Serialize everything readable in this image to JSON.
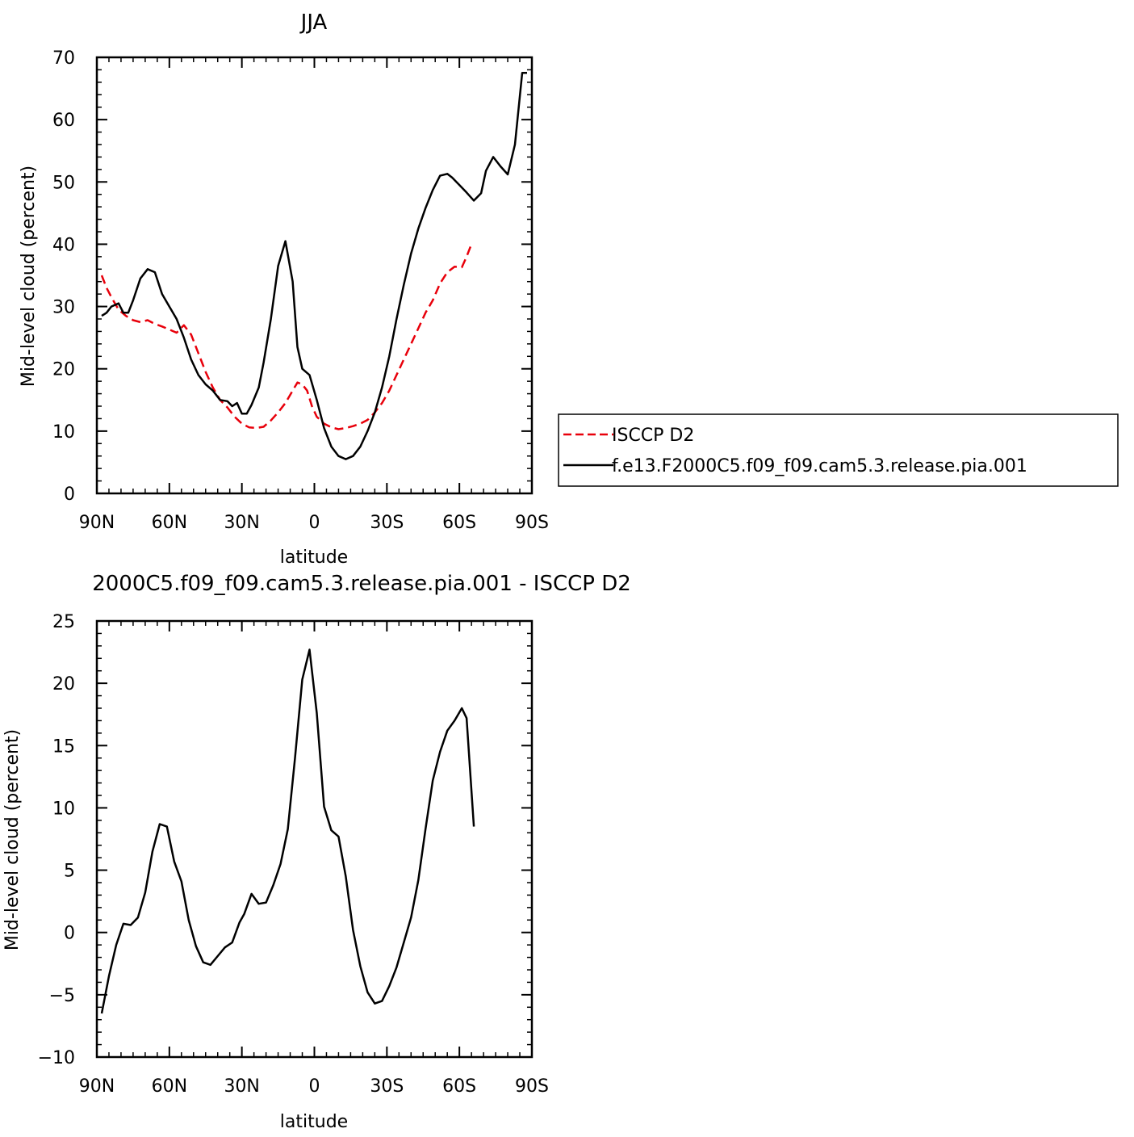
{
  "colors": {
    "model": "#000000",
    "obs": "#e8000b"
  },
  "chart_data": [
    {
      "type": "line",
      "title": "JJA",
      "xlabel": "latitude",
      "ylabel": "Mid-level cloud (percent)",
      "xlim": [
        90,
        -90
      ],
      "ylim": [
        0,
        70
      ],
      "xticks": [
        90,
        60,
        30,
        0,
        -30,
        -60,
        -90
      ],
      "xtick_labels": [
        "90N",
        "60N",
        "30N",
        "0",
        "30S",
        "60S",
        "90S"
      ],
      "yticks": [
        0,
        10,
        20,
        30,
        40,
        50,
        60,
        70
      ],
      "ytick_labels": [
        "0",
        "10",
        "20",
        "30",
        "40",
        "50",
        "60",
        "70"
      ],
      "legend_position": "right",
      "series": [
        {
          "name": "ISCCP D2",
          "style": "dashed",
          "color": "#e8000b",
          "x": [
            88,
            86,
            84,
            81,
            78,
            75,
            72,
            69,
            66,
            63,
            60,
            57,
            54,
            51,
            48,
            45,
            42,
            39,
            36,
            33,
            30,
            27,
            24,
            21,
            18,
            15,
            12,
            9,
            7,
            5,
            3,
            1,
            -1,
            -4,
            -7,
            -10,
            -13,
            -16,
            -19,
            -22,
            -25,
            -28,
            -31,
            -34,
            -37,
            -40,
            -43,
            -46,
            -49,
            -52,
            -55,
            -58,
            -61,
            -63,
            -65
          ],
          "y": [
            35,
            33,
            31.5,
            29.5,
            28.5,
            27.8,
            27.5,
            27.8,
            27.2,
            26.8,
            26.3,
            25.8,
            27,
            25.5,
            22.5,
            19.5,
            17,
            15,
            13.8,
            12.3,
            11.2,
            10.6,
            10.5,
            10.7,
            11.7,
            13,
            14.5,
            16.5,
            17.8,
            17.5,
            16.5,
            14,
            12.3,
            11.2,
            10.6,
            10.3,
            10.5,
            10.8,
            11.2,
            11.8,
            13,
            14.5,
            16.5,
            19,
            21.5,
            24,
            26.5,
            29,
            31,
            33.7,
            35.5,
            36.4,
            36.3,
            38,
            40
          ]
        },
        {
          "name": "f.e13.F2000C5.f09_f09.cam5.3.release.pia.001",
          "style": "solid",
          "color": "#000000",
          "x": [
            88,
            86,
            84,
            81,
            79,
            77,
            75,
            72,
            69,
            66,
            63,
            60,
            57,
            54,
            51,
            48,
            45,
            42,
            39,
            36,
            34,
            32,
            30,
            28,
            26,
            23,
            21,
            18,
            15,
            12,
            9,
            7,
            5,
            2,
            -1,
            -4,
            -7,
            -10,
            -13,
            -16,
            -19,
            -22,
            -25,
            -28,
            -31,
            -34,
            -37,
            -40,
            -43,
            -46,
            -49,
            -52,
            -55,
            -57,
            -60,
            -63,
            -66,
            -69,
            -71,
            -74,
            -77,
            -80,
            -83,
            -86,
            -88
          ],
          "y": [
            28.5,
            29,
            30,
            30.5,
            29,
            29,
            31,
            34.5,
            36,
            35.5,
            32,
            30,
            28,
            25,
            21.5,
            19,
            17.5,
            16.5,
            15,
            14.8,
            14,
            14.5,
            12.8,
            12.8,
            14.2,
            17,
            21,
            28,
            36.5,
            40.5,
            34,
            23.5,
            20,
            19,
            15,
            10.5,
            7.5,
            6,
            5.5,
            6,
            7.5,
            10,
            13,
            17,
            22,
            28,
            33.5,
            38.5,
            42.5,
            45.8,
            48.7,
            51,
            51.3,
            50.7,
            49.5,
            48.3,
            47,
            48.2,
            51.8,
            54,
            52.5,
            51.2,
            56,
            67.5,
            67.5
          ]
        }
      ],
      "legend": {
        "entries": [
          "ISCCP D2",
          "f.e13.F2000C5.f09_f09.cam5.3.release.pia.001"
        ]
      }
    },
    {
      "type": "line",
      "title": "2000C5.f09_f09.cam5.3.release.pia.001 - ISCCP D2",
      "xlabel": "latitude",
      "ylabel": "Mid-level cloud (percent)",
      "xlim": [
        90,
        -90
      ],
      "ylim": [
        -10,
        25
      ],
      "xticks": [
        90,
        60,
        30,
        0,
        -30,
        -60,
        -90
      ],
      "xtick_labels": [
        "90N",
        "60N",
        "30N",
        "0",
        "30S",
        "60S",
        "90S"
      ],
      "yticks": [
        -10,
        -5,
        0,
        5,
        10,
        15,
        20,
        25
      ],
      "ytick_labels": [
        "−10",
        "−5",
        "0",
        "5",
        "10",
        "15",
        "20",
        "25"
      ],
      "series": [
        {
          "style": "solid",
          "color": "#000000",
          "x": [
            88,
            85,
            82,
            79,
            76,
            73,
            70,
            67,
            64,
            61,
            58,
            55,
            52,
            49,
            46,
            43,
            40,
            37,
            34,
            31,
            29,
            26,
            23,
            20,
            17,
            14,
            11,
            8,
            5,
            2,
            -1,
            -4,
            -7,
            -10,
            -13,
            -16,
            -19,
            -22,
            -25,
            -28,
            -31,
            -34,
            -37,
            -40,
            -43,
            -46,
            -49,
            -52,
            -55,
            -58,
            -61,
            -63,
            -66
          ],
          "y": [
            -6.5,
            -3.5,
            -1,
            0.7,
            0.6,
            1.2,
            3.2,
            6.5,
            8.7,
            8.5,
            5.7,
            4.1,
            1,
            -1.1,
            -2.4,
            -2.6,
            -1.9,
            -1.2,
            -0.8,
            0.8,
            1.5,
            3.1,
            2.3,
            2.4,
            3.8,
            5.5,
            8.3,
            14,
            20.3,
            22.7,
            17.6,
            10.1,
            8.2,
            7.7,
            4.5,
            0.2,
            -2.7,
            -4.8,
            -5.7,
            -5.5,
            -4.3,
            -2.8,
            -0.8,
            1.2,
            4.2,
            8.3,
            12.2,
            14.5,
            16.2,
            17,
            18,
            17.2,
            8.5
          ]
        }
      ]
    }
  ]
}
